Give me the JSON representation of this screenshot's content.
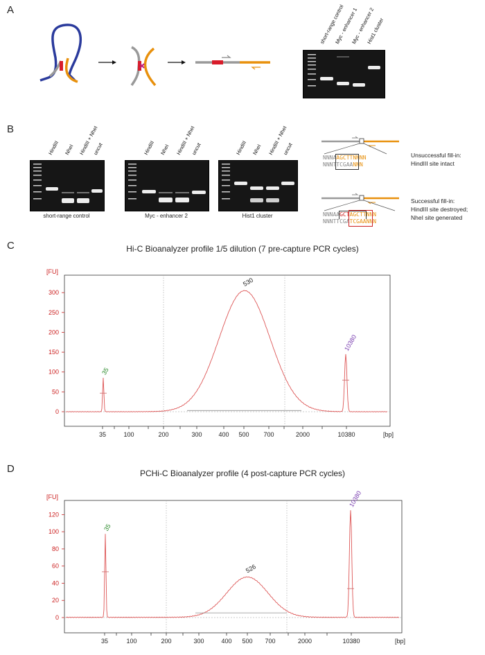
{
  "panelA": {
    "letter": "A",
    "lanes": [
      "short-range control",
      "Myc - enhancer 1",
      "Myc - enhancer 2",
      "Hist1 cluster"
    ],
    "arrows": [
      "→",
      "→"
    ]
  },
  "panelB": {
    "letter": "B",
    "gels": [
      {
        "lanes": [
          "HindIII",
          "NheI",
          "HindIII + NheI",
          "uncut"
        ],
        "caption": "short-range control"
      },
      {
        "lanes": [
          "HindIII",
          "NheI",
          "HindIII + NheI",
          "uncut"
        ],
        "caption": "Myc - enhancer 2"
      },
      {
        "lanes": [
          "HindIII",
          "NheI",
          "HindIII + NheI",
          "uncut"
        ],
        "caption": "Hist1 cluster"
      }
    ],
    "unsuccessful": {
      "line1": "Unsuccessful fill-in:",
      "line2": "HindIII site intact",
      "seq_top": [
        "NNNA",
        "AGCTT",
        "NNNN"
      ],
      "seq_bottom": [
        "NNNT",
        "TCGAA",
        "NNN"
      ]
    },
    "successful": {
      "line1": "Successful fill-in:",
      "line2": "HindIII site destroyed;",
      "line3": "NheI site generated",
      "seq_top": [
        "NNNAA",
        "GCT",
        "AGCT",
        "TNNN"
      ],
      "seq_bottom": [
        "NNNT",
        "TCGA",
        "TCGA",
        "ANNN"
      ]
    }
  },
  "panelC": {
    "letter": "C"
  },
  "panelD": {
    "letter": "D"
  },
  "colors": {
    "axis": "#cc2222",
    "trace": "#dd5555",
    "green": "#2a8a2a",
    "purple": "#7a3fb0",
    "orange": "#e8900c",
    "blue": "#2a3a9c",
    "red": "#d81c2a"
  },
  "chart_data": [
    {
      "type": "line",
      "title": "Hi-C Bioanalyzer profile 1/5 dilution (7 pre-capture PCR cycles)",
      "ylabel": "[FU]",
      "xlabel": "[bp]",
      "ylim": [
        0,
        330
      ],
      "yticks": [
        0,
        50,
        100,
        150,
        200,
        250,
        300
      ],
      "xtick_labels": [
        "35",
        "100",
        "200",
        "300",
        "400",
        "500",
        "700",
        "2000",
        "10380"
      ],
      "marker_peaks": [
        {
          "label": "35",
          "height": 85
        },
        {
          "label": "10380",
          "height": 145
        }
      ],
      "main_peak": {
        "label": "530",
        "height": 305
      },
      "peak_labels": [
        "35",
        "530",
        "10380"
      ]
    },
    {
      "type": "line",
      "title": "PCHi-C Bioanalyzer profile (4 post-capture PCR cycles)",
      "ylabel": "[FU]",
      "xlabel": "[bp]",
      "ylim": [
        0,
        130
      ],
      "yticks": [
        0,
        20,
        40,
        60,
        80,
        100,
        120
      ],
      "xtick_labels": [
        "35",
        "100",
        "200",
        "300",
        "400",
        "500",
        "700",
        "2000",
        "10380"
      ],
      "marker_peaks": [
        {
          "label": "35",
          "height": 97
        },
        {
          "label": "10380",
          "height": 125
        }
      ],
      "main_peak": {
        "label": "526",
        "height": 47
      },
      "peak_labels": [
        "35",
        "526",
        "10380"
      ]
    }
  ]
}
